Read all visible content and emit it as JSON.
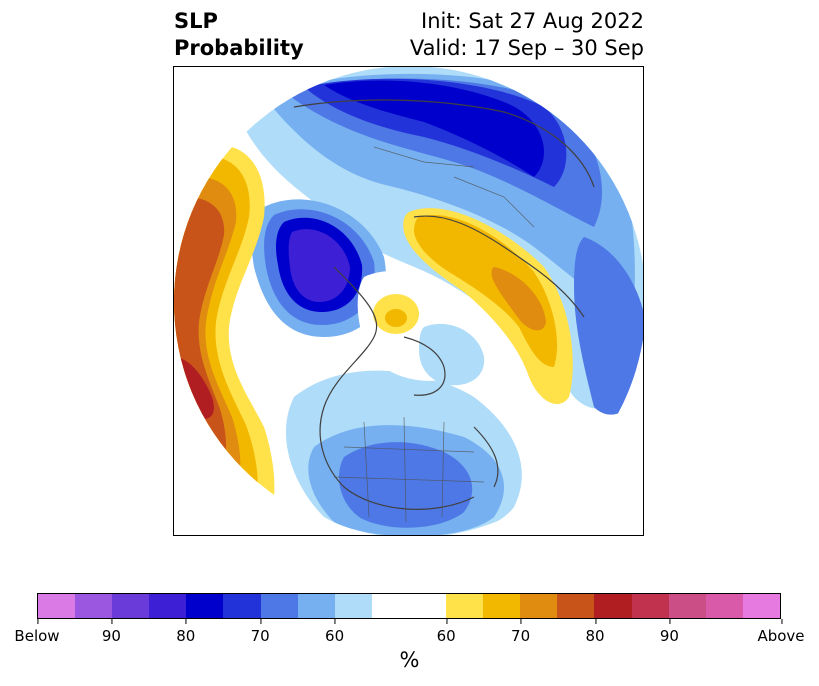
{
  "title": {
    "left_line1": "SLP",
    "left_line2": "Probability",
    "right_line1": "Init: Sat 27 Aug 2022",
    "right_line2": "Valid: 17 Sep – 30 Sep"
  },
  "colorbar": {
    "unit": "%",
    "colors": [
      "#d97ae5",
      "#9b57e0",
      "#6a3bd8",
      "#3d1fd6",
      "#0000cc",
      "#2233d9",
      "#4d78e5",
      "#76b0f0",
      "#aedcf9",
      "#ffffff",
      "#ffe14a",
      "#f2b800",
      "#e08c10",
      "#c8541a",
      "#b01e22",
      "#c0324e",
      "#cc4e86",
      "#d95aa8",
      "#e67ae0"
    ],
    "ticks": [
      "Below",
      "90",
      "80",
      "70",
      "60",
      "60",
      "70",
      "80",
      "90",
      "Above"
    ]
  },
  "map": {
    "colors": {
      "b1": "#aedcf9",
      "b2": "#76b0f0",
      "b3": "#4d78e5",
      "b4": "#2233d9",
      "b5": "#0000cc",
      "b6": "#3d1fd6",
      "y1": "#ffe14a",
      "y2": "#f2b800",
      "y3": "#e08c10",
      "y4": "#c8541a",
      "y5": "#b01e22"
    }
  }
}
